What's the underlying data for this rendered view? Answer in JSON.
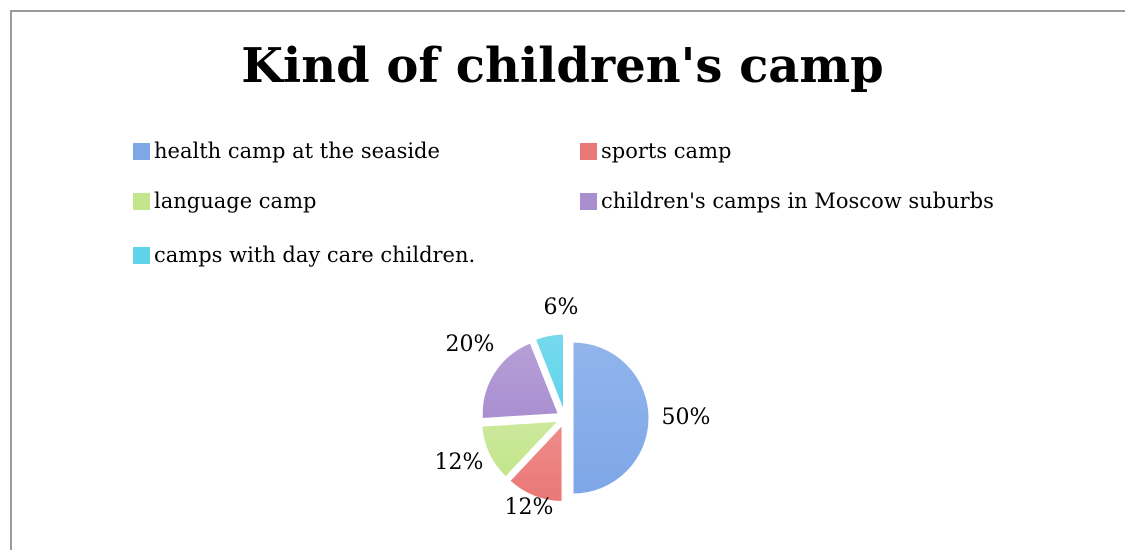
{
  "chart_data": {
    "type": "pie",
    "title": "Kind of children's camp",
    "legend_position": "top",
    "exploded": true,
    "slices": [
      {
        "name": "health camp at the seaside",
        "value": 50,
        "label": "50%",
        "color": "#7ea7e8"
      },
      {
        "name": "sports camp",
        "value": 12,
        "label": "12%",
        "color": "#ea7876"
      },
      {
        "name": "language camp",
        "value": 12,
        "label": "12%",
        "color": "#c3e58b"
      },
      {
        "name": "children's camps in Moscow suburbs",
        "value": 20,
        "label": "20%",
        "color": "#a98fd0"
      },
      {
        "name": "camps with day care children.",
        "value": 6,
        "label": "6%",
        "color": "#5fd3ea"
      }
    ]
  }
}
